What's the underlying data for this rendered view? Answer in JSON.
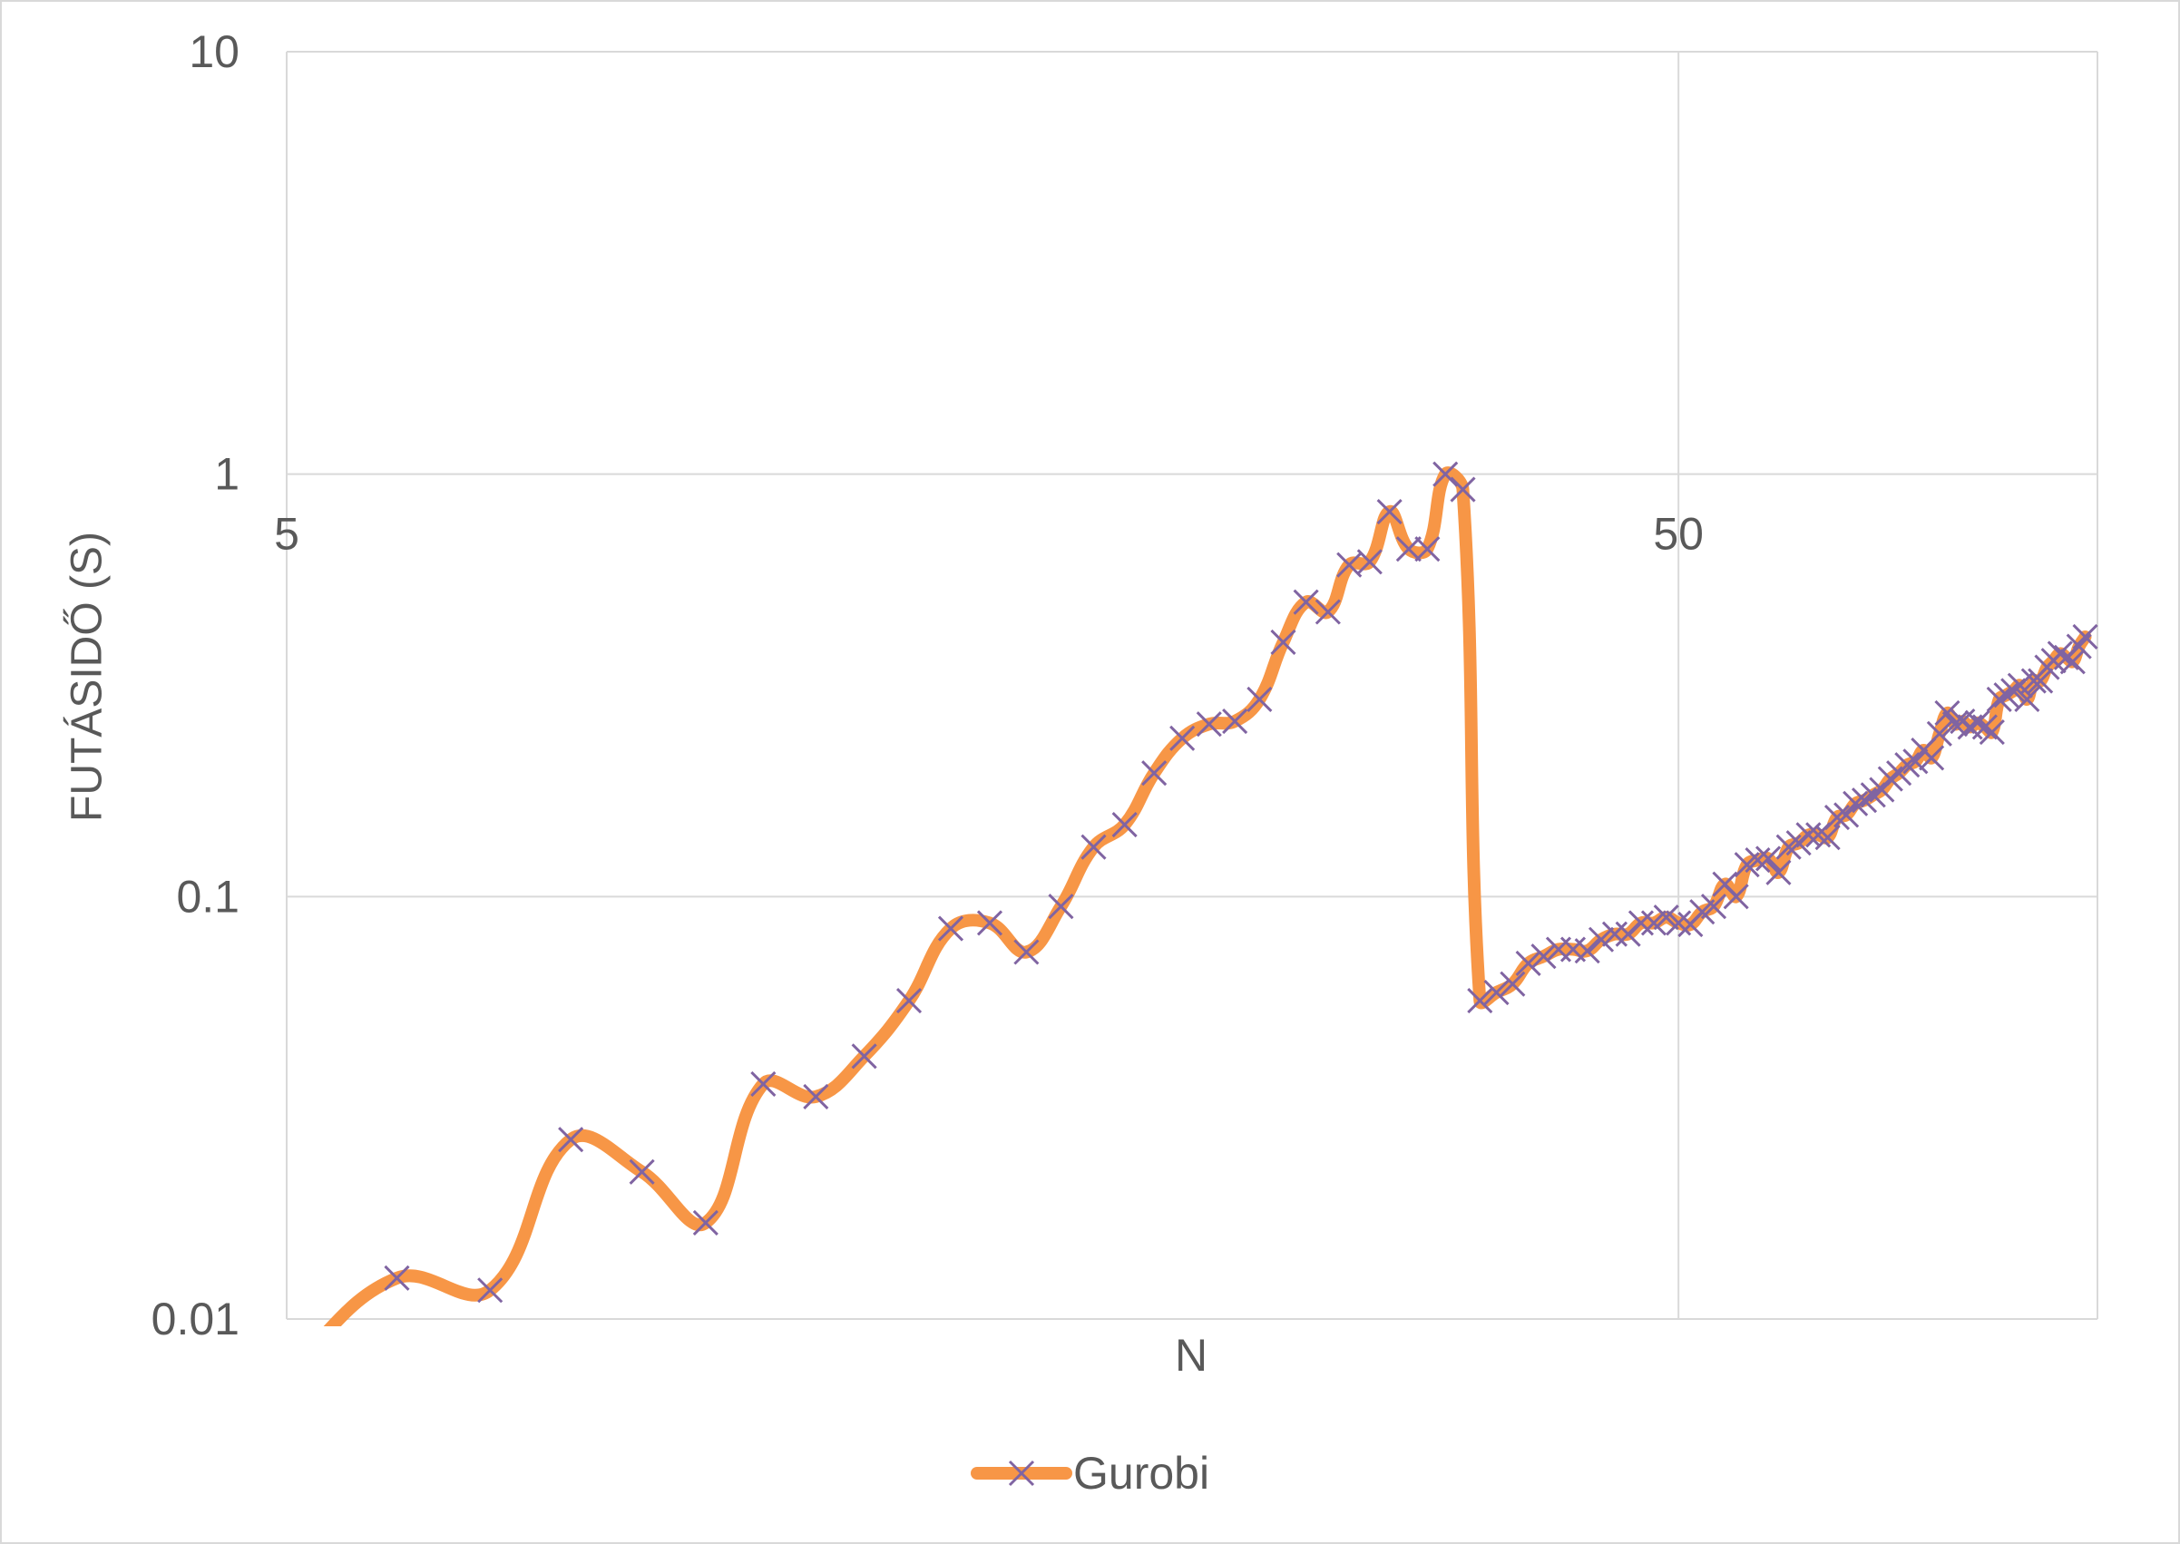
{
  "chart_data": {
    "type": "line",
    "xlabel": "N",
    "ylabel": "FUTÁSIDŐ (S)",
    "x_scale": "log",
    "y_scale": "log",
    "xlim": [
      5,
      100
    ],
    "ylim": [
      0.01,
      10
    ],
    "x_axis_crosses_at": 1,
    "x_ticks": [
      {
        "value": 5,
        "label": "5"
      },
      {
        "value": 50,
        "label": "50"
      }
    ],
    "y_ticks": [
      {
        "value": 10,
        "label": "10"
      },
      {
        "value": 1,
        "label": "1"
      },
      {
        "value": 0.1,
        "label": "0.1"
      },
      {
        "value": 0.01,
        "label": "0.01"
      }
    ],
    "grid": true,
    "legend": "bottom",
    "smooth": true,
    "series": [
      {
        "name": "Gurobi",
        "color": "#F79646",
        "marker": "x",
        "marker_color": "#8064A2",
        "x": [
          5,
          6,
          7,
          8,
          9,
          10,
          11,
          12,
          13,
          14,
          15,
          16,
          17,
          18,
          19,
          20,
          21,
          22,
          23,
          24,
          25,
          26,
          27,
          28,
          29,
          30,
          31,
          32,
          33,
          34,
          35,
          36,
          37,
          38,
          39,
          40,
          41,
          42,
          43,
          44,
          45,
          46,
          47,
          48,
          49,
          50,
          51,
          52,
          53,
          54,
          55,
          56,
          57,
          58,
          59,
          60,
          61,
          62,
          63,
          64,
          65,
          66,
          67,
          68,
          69,
          70,
          71,
          72,
          73,
          74,
          75,
          76,
          77,
          78,
          79,
          80,
          81,
          82,
          83,
          84,
          85,
          86,
          87,
          88,
          89,
          90,
          91,
          92,
          93,
          94,
          95,
          96,
          97,
          98
        ],
        "y": [
          0.0075,
          0.0125,
          0.0117,
          0.0266,
          0.0223,
          0.0169,
          0.036,
          0.0336,
          0.0419,
          0.0567,
          0.084,
          0.0866,
          0.0739,
          0.0948,
          0.131,
          0.148,
          0.196,
          0.237,
          0.256,
          0.26,
          0.293,
          0.4,
          0.498,
          0.472,
          0.61,
          0.62,
          0.815,
          0.665,
          0.665,
          1.0,
          0.92,
          0.0567,
          0.0593,
          0.0621,
          0.0695,
          0.0722,
          0.075,
          0.075,
          0.0744,
          0.0791,
          0.0815,
          0.0815,
          0.0866,
          0.0866,
          0.0893,
          0.0866,
          0.0859,
          0.092,
          0.0948,
          0.107,
          0.1,
          0.119,
          0.122,
          0.123,
          0.114,
          0.131,
          0.134,
          0.14,
          0.14,
          0.138,
          0.154,
          0.156,
          0.166,
          0.169,
          0.174,
          0.179,
          0.19,
          0.196,
          0.205,
          0.209,
          0.222,
          0.213,
          0.243,
          0.272,
          0.256,
          0.26,
          0.252,
          0.258,
          0.252,
          0.245,
          0.293,
          0.3,
          0.307,
          0.316,
          0.293,
          0.324,
          0.324,
          0.349,
          0.362,
          0.376,
          0.368,
          0.36,
          0.391,
          0.412
        ]
      }
    ]
  },
  "colors": {
    "text": "#595959",
    "grid": "#D9D9D9",
    "border": "#D9D9D9",
    "background": "#FFFFFF"
  }
}
